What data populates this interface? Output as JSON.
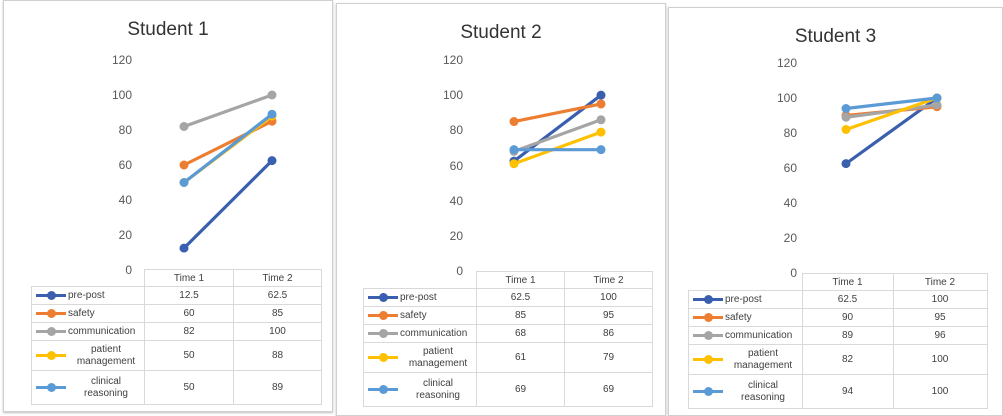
{
  "chart_data": [
    {
      "type": "line",
      "title": "Student 1",
      "categories": [
        "Time 1",
        "Time 2"
      ],
      "ylim": [
        0,
        120
      ],
      "yticks": [
        "0",
        "20",
        "40",
        "60",
        "80",
        "100",
        "120"
      ],
      "series": [
        {
          "name": "pre-post",
          "values": [
            12.5,
            62.5
          ],
          "labels": [
            "12.5",
            "62.5"
          ],
          "color": "#3a5fae"
        },
        {
          "name": "safety",
          "values": [
            60,
            85
          ],
          "labels": [
            "60",
            "85"
          ],
          "color": "#ed7d31"
        },
        {
          "name": "communication",
          "values": [
            82,
            100
          ],
          "labels": [
            "82",
            "100"
          ],
          "color": "#a5a5a5"
        },
        {
          "name": "patient management",
          "values": [
            50,
            88
          ],
          "labels": [
            "50",
            "88"
          ],
          "color": "#ffc000"
        },
        {
          "name": "clinical reasoning",
          "values": [
            50,
            89
          ],
          "labels": [
            "50",
            "89"
          ],
          "color": "#5b9bd5"
        }
      ]
    },
    {
      "type": "line",
      "title": "Student 2",
      "categories": [
        "Time 1",
        "Time 2"
      ],
      "ylim": [
        0,
        120
      ],
      "yticks": [
        "0",
        "20",
        "40",
        "60",
        "80",
        "100",
        "120"
      ],
      "series": [
        {
          "name": "pre-post",
          "values": [
            62.5,
            100
          ],
          "labels": [
            "62.5",
            "100"
          ],
          "color": "#3a5fae"
        },
        {
          "name": "safety",
          "values": [
            85,
            95
          ],
          "labels": [
            "85",
            "95"
          ],
          "color": "#ed7d31"
        },
        {
          "name": "communication",
          "values": [
            68,
            86
          ],
          "labels": [
            "68",
            "86"
          ],
          "color": "#a5a5a5"
        },
        {
          "name": "patient management",
          "values": [
            61,
            79
          ],
          "labels": [
            "61",
            "79"
          ],
          "color": "#ffc000"
        },
        {
          "name": "clinical reasoning",
          "values": [
            69,
            69
          ],
          "labels": [
            "69",
            "69"
          ],
          "color": "#5b9bd5"
        }
      ]
    },
    {
      "type": "line",
      "title": "Student 3",
      "categories": [
        "Time 1",
        "Time 2"
      ],
      "ylim": [
        0,
        120
      ],
      "yticks": [
        "0",
        "20",
        "40",
        "60",
        "80",
        "100",
        "120"
      ],
      "series": [
        {
          "name": "pre-post",
          "values": [
            62.5,
            100
          ],
          "labels": [
            "62.5",
            "100"
          ],
          "color": "#3a5fae"
        },
        {
          "name": "safety",
          "values": [
            90,
            95
          ],
          "labels": [
            "90",
            "95"
          ],
          "color": "#ed7d31"
        },
        {
          "name": "communication",
          "values": [
            89,
            96
          ],
          "labels": [
            "89",
            "96"
          ],
          "color": "#a5a5a5"
        },
        {
          "name": "patient management",
          "values": [
            82,
            100
          ],
          "labels": [
            "82",
            "100"
          ],
          "color": "#ffc000"
        },
        {
          "name": "clinical reasoning",
          "values": [
            94,
            100
          ],
          "labels": [
            "94",
            "100"
          ],
          "color": "#5b9bd5"
        }
      ]
    }
  ]
}
